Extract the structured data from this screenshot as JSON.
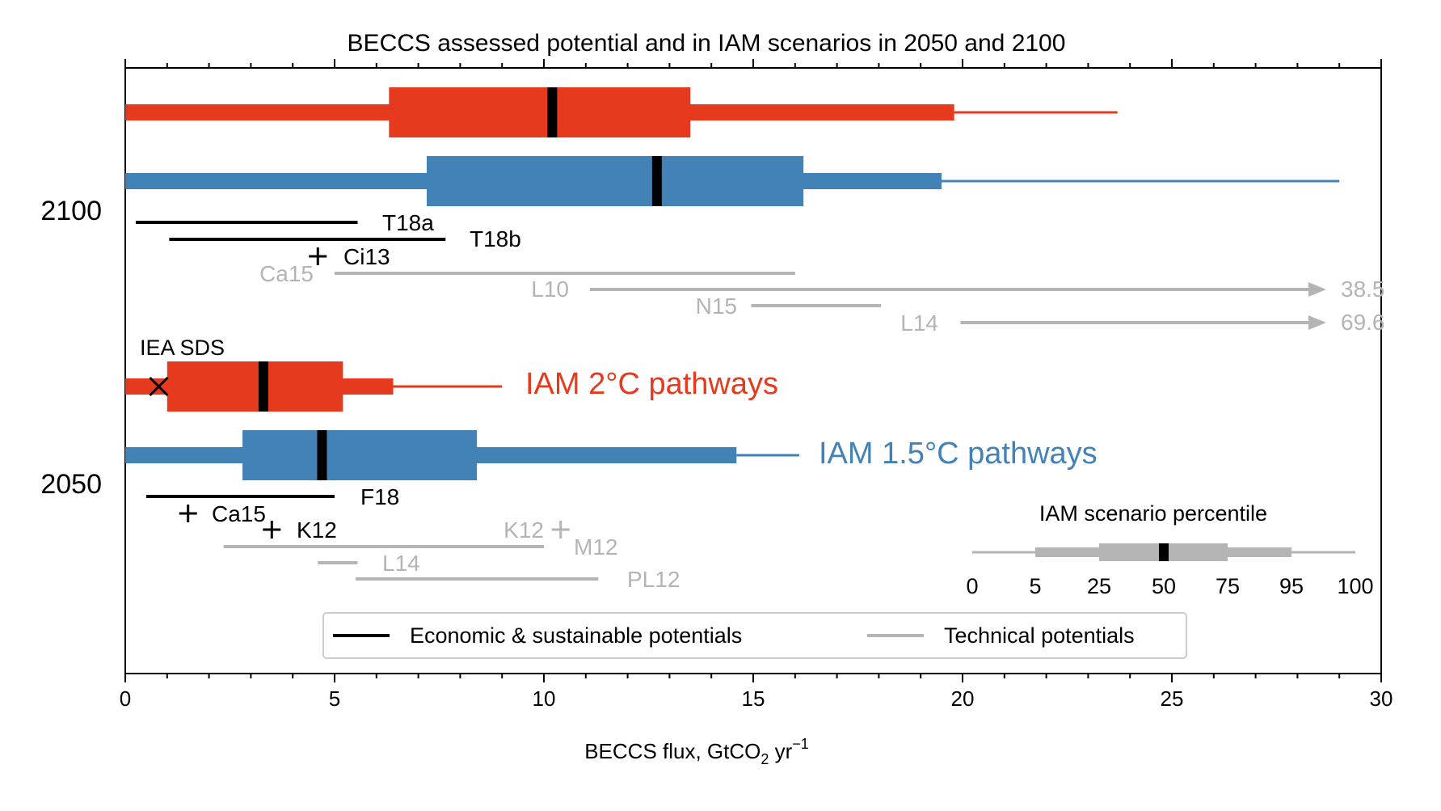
{
  "chart_data": {
    "type": "box",
    "title": "BECCS assessed potential and in IAM scenarios in 2050 and 2100",
    "xlabel_main": "BECCS flux, GtCO",
    "xlabel_sub": "2",
    "xlabel_mid": " yr",
    "xlabel_sup": "−1",
    "xlim": [
      0,
      30
    ],
    "x_ticks": [
      "0",
      "5",
      "10",
      "15",
      "20",
      "25",
      "30"
    ],
    "y_groups": [
      "2100",
      "2050"
    ],
    "colors": {
      "iam_2c": "#e63a1e",
      "iam_15c": "#4382b6",
      "economic": "#000000",
      "technical": "#b4b4b4"
    },
    "series_labels": {
      "iam_2c": "IAM 2°C pathways",
      "iam_15c": "IAM 1.5°C pathways"
    },
    "iam_boxes": [
      {
        "year": "2100",
        "series": "iam_2c",
        "p0": 0,
        "p5": 0,
        "p25": 6.3,
        "p50": 10.2,
        "p75": 13.5,
        "p95": 19.8,
        "p100": 23.7
      },
      {
        "year": "2100",
        "series": "iam_15c",
        "p0": 0,
        "p5": 0,
        "p25": 7.2,
        "p50": 12.7,
        "p75": 16.2,
        "p95": 19.5,
        "p100": 29.0
      },
      {
        "year": "2050",
        "series": "iam_2c",
        "p0": 0,
        "p5": 1.0,
        "p25": 1.0,
        "p50": 3.3,
        "p75": 5.2,
        "p95": 6.4,
        "p100": 9.0
      },
      {
        "year": "2050",
        "series": "iam_15c",
        "p0": 0,
        "p5": 0,
        "p25": 2.8,
        "p50": 4.7,
        "p75": 8.4,
        "p95": 14.6,
        "p100": 16.1
      }
    ],
    "assessed_2100": [
      {
        "label": "T18a",
        "kind": "economic",
        "range": [
          0.25,
          5.55
        ]
      },
      {
        "label": "T18b",
        "kind": "economic",
        "range": [
          1.05,
          7.65
        ]
      },
      {
        "label": "Ci13",
        "kind": "economic",
        "point": 4.6
      },
      {
        "label": "Ca15",
        "kind": "technical",
        "range": [
          5.0,
          16.0
        ]
      },
      {
        "label": "L10",
        "kind": "technical",
        "range": [
          11.1,
          28.3
        ],
        "arrow_value": "38.5"
      },
      {
        "label": "N15",
        "kind": "technical",
        "range": [
          14.95,
          18.05
        ]
      },
      {
        "label": "L14",
        "kind": "technical",
        "range": [
          19.95,
          28.3
        ],
        "arrow_value": "69.6"
      }
    ],
    "assessed_2050": [
      {
        "label": "F18",
        "kind": "economic",
        "range": [
          0.5,
          5.0
        ]
      },
      {
        "label": "Ca15",
        "kind": "economic",
        "point": 1.5
      },
      {
        "label": "K12",
        "kind": "economic",
        "point": 3.5
      },
      {
        "label": "K12",
        "kind": "technical",
        "point": 10.4
      },
      {
        "label": "M12",
        "kind": "technical",
        "range": [
          2.35,
          10.0
        ]
      },
      {
        "label": "L14",
        "kind": "technical",
        "range": [
          4.6,
          5.55
        ]
      },
      {
        "label": "PL12",
        "kind": "technical",
        "range": [
          5.5,
          11.3
        ]
      }
    ],
    "iea_sds": {
      "label": "IEA SDS",
      "value": 0.8,
      "year": "2050"
    },
    "legend": {
      "placement": "bottom-center",
      "entries": [
        "Economic & sustainable potentials",
        "Technical potentials"
      ]
    },
    "percentile_key": {
      "title": "IAM scenario percentile",
      "labels": [
        "0",
        "5",
        "25",
        "50",
        "75",
        "95",
        "100"
      ]
    },
    "grid": false
  }
}
